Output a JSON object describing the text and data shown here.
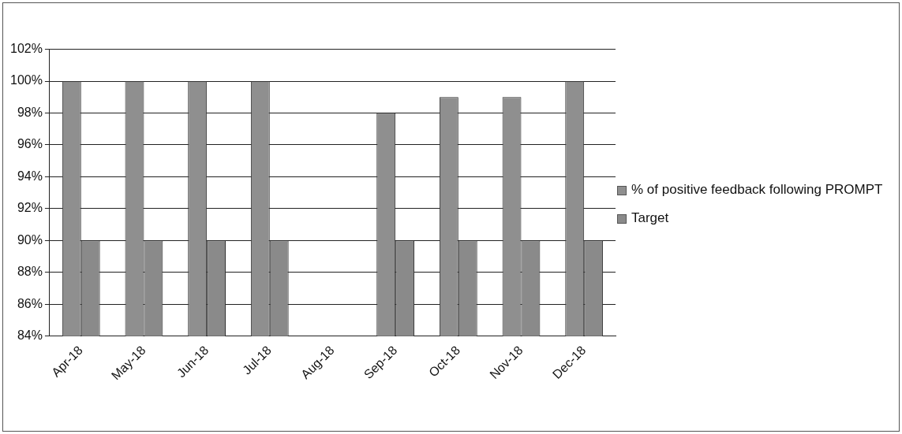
{
  "chart_data": {
    "type": "bar",
    "categories": [
      "Apr-18",
      "May-18",
      "Jun-18",
      "Jul-18",
      "Aug-18",
      "Sep-18",
      "Oct-18",
      "Nov-18",
      "Dec-18"
    ],
    "series": [
      {
        "name": "% of positive feedback following PROMPT",
        "color": "#8f8f8f",
        "values": [
          100,
          100,
          100,
          100,
          null,
          98,
          99,
          99,
          100
        ]
      },
      {
        "name": "Target",
        "color": "#8a8a8a",
        "values": [
          90,
          90,
          90,
          90,
          null,
          90,
          90,
          90,
          90
        ]
      }
    ],
    "ylim": [
      84,
      102
    ],
    "yticks": [
      {
        "value": 84,
        "label": "84%"
      },
      {
        "value": 86,
        "label": "86%"
      },
      {
        "value": 88,
        "label": "88%"
      },
      {
        "value": 90,
        "label": "90%"
      },
      {
        "value": 92,
        "label": "92%"
      },
      {
        "value": 94,
        "label": "94%"
      },
      {
        "value": 96,
        "label": "96%"
      },
      {
        "value": 98,
        "label": "98%"
      },
      {
        "value": 100,
        "label": "100%"
      },
      {
        "value": 102,
        "label": "102%"
      }
    ],
    "grid": "y",
    "legend": "right"
  }
}
